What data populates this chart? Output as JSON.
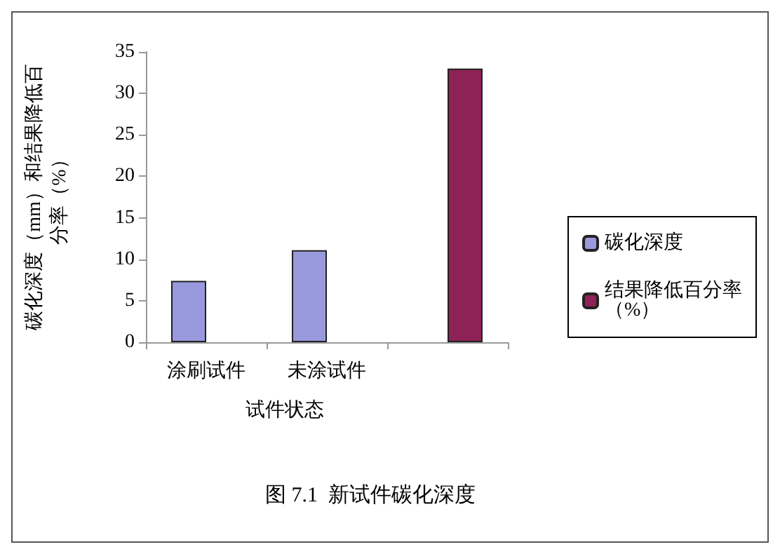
{
  "chart_data": {
    "type": "bar",
    "title": "图 7.1  新试件碳化深度",
    "xlabel": "试件状态",
    "ylabel": "碳化深度（mm）和结果降低百分率（%）",
    "categories": [
      "涂刷试件",
      "未涂试件",
      null
    ],
    "series": [
      {
        "name": "碳化深度",
        "color": "#9999dd",
        "values": [
          7.4,
          11.1,
          null
        ]
      },
      {
        "name": "结果降低百分率（%）",
        "color": "#8e2256",
        "values": [
          null,
          null,
          33
        ]
      }
    ],
    "ylim": [
      0,
      35
    ],
    "yticks": [
      0,
      5,
      10,
      15,
      20,
      25,
      30,
      35
    ],
    "grid": false,
    "legend": "right"
  }
}
